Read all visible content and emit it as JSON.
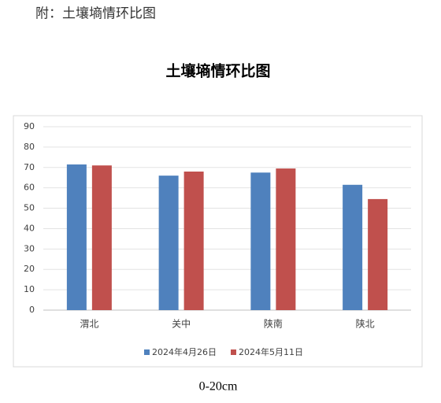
{
  "header": {
    "title": "附：土壤墒情环比图"
  },
  "chart_data": {
    "type": "bar",
    "title": "土壤墒情环比图",
    "categories": [
      "渭北",
      "关中",
      "陕南",
      "陕北"
    ],
    "series": [
      {
        "name": "2024年4月26日",
        "color": "#4f81bd",
        "values": [
          71.5,
          66,
          67.5,
          61.5
        ]
      },
      {
        "name": "2024年5月11日",
        "color": "#c0504d",
        "values": [
          71,
          68,
          69.5,
          54.5
        ]
      }
    ],
    "ylim": [
      0,
      90
    ],
    "yticks": [
      0,
      10,
      20,
      30,
      40,
      50,
      60,
      70,
      80,
      90
    ],
    "grid": true,
    "legend": "bottom"
  },
  "caption": "0-20cm"
}
